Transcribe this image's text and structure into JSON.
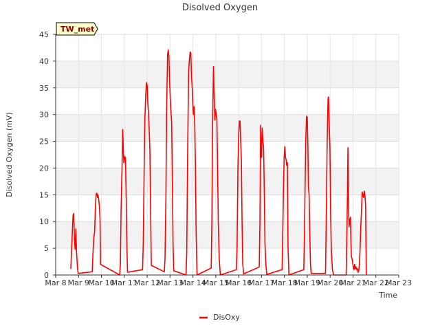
{
  "chart_data": {
    "type": "line",
    "title": "Disolved Oxygen",
    "xlabel": "Time",
    "ylabel": "Disolved Oxygen (mV)",
    "station_label": "TW_met",
    "xlim": [
      8,
      23
    ],
    "ylim": [
      0,
      45
    ],
    "x_ticks": [
      8,
      9,
      10,
      11,
      12,
      13,
      14,
      15,
      16,
      17,
      18,
      19,
      20,
      21,
      22,
      23
    ],
    "x_tick_labels": [
      "Mar 8",
      "Mar 9",
      "Mar 10",
      "Mar 11",
      "Mar 12",
      "Mar 13",
      "Mar 14",
      "Mar 15",
      "Mar 16",
      "Mar 17",
      "Mar 18",
      "Mar 19",
      "Mar 20",
      "Mar 21",
      "Mar 22",
      "Mar 23"
    ],
    "y_ticks": [
      0,
      5,
      10,
      15,
      20,
      25,
      30,
      35,
      40,
      45
    ],
    "y_tick_labels": [
      "0",
      "5",
      "10",
      "15",
      "20",
      "25",
      "30",
      "35",
      "40",
      "45"
    ],
    "grid": true,
    "banded_background": true,
    "legend_position": "bottom-center",
    "series": [
      {
        "name": "DisOxy",
        "color": "#ff0000",
        "points": [
          [
            8.66,
            1.1
          ],
          [
            8.72,
            7.5
          ],
          [
            8.76,
            11.2
          ],
          [
            8.79,
            11.5
          ],
          [
            8.82,
            6.5
          ],
          [
            8.85,
            4.8
          ],
          [
            8.88,
            8.6
          ],
          [
            8.91,
            4.5
          ],
          [
            8.95,
            1.5
          ],
          [
            8.98,
            0.3
          ],
          [
            9.6,
            0.6
          ],
          [
            9.63,
            4.0
          ],
          [
            9.67,
            7.2
          ],
          [
            9.7,
            8.0
          ],
          [
            9.74,
            13.0
          ],
          [
            9.77,
            15.2
          ],
          [
            9.8,
            15.3
          ],
          [
            9.83,
            14.5
          ],
          [
            9.85,
            15.0
          ],
          [
            9.88,
            14.2
          ],
          [
            9.91,
            13.0
          ],
          [
            9.94,
            10.5
          ],
          [
            9.96,
            2.0
          ],
          [
            10.8,
            0.0
          ],
          [
            10.83,
            2.0
          ],
          [
            10.86,
            12.0
          ],
          [
            10.9,
            20.0
          ],
          [
            10.93,
            27.2
          ],
          [
            10.96,
            23.0
          ],
          [
            10.98,
            21.0
          ],
          [
            11.0,
            22.2
          ],
          [
            11.02,
            21.5
          ],
          [
            11.05,
            22.0
          ],
          [
            11.08,
            15.0
          ],
          [
            11.11,
            6.0
          ],
          [
            11.14,
            0.5
          ],
          [
            11.8,
            1.0
          ],
          [
            11.83,
            6.0
          ],
          [
            11.87,
            20.0
          ],
          [
            11.9,
            29.0
          ],
          [
            11.94,
            34.0
          ],
          [
            11.97,
            36.0
          ],
          [
            12.0,
            35.5
          ],
          [
            12.03,
            32.0
          ],
          [
            12.06,
            30.0
          ],
          [
            12.09,
            27.0
          ],
          [
            12.12,
            23.0
          ],
          [
            12.15,
            12.0
          ],
          [
            12.18,
            1.8
          ],
          [
            12.75,
            0.6
          ],
          [
            12.78,
            3.0
          ],
          [
            12.82,
            14.0
          ],
          [
            12.85,
            30.0
          ],
          [
            12.89,
            41.0
          ],
          [
            12.92,
            42.1
          ],
          [
            12.95,
            41.0
          ],
          [
            12.98,
            36.0
          ],
          [
            13.01,
            33.0
          ],
          [
            13.04,
            30.5
          ],
          [
            13.07,
            28.5
          ],
          [
            13.1,
            18.0
          ],
          [
            13.13,
            6.0
          ],
          [
            13.16,
            0.8
          ],
          [
            13.7,
            0.0
          ],
          [
            13.73,
            4.0
          ],
          [
            13.77,
            22.0
          ],
          [
            13.81,
            38.0
          ],
          [
            13.84,
            40.0
          ],
          [
            13.88,
            41.7
          ],
          [
            13.91,
            41.5
          ],
          [
            13.94,
            37.0
          ],
          [
            13.97,
            35.0
          ],
          [
            14.0,
            31.5
          ],
          [
            14.02,
            30.0
          ],
          [
            14.05,
            31.5
          ],
          [
            14.08,
            28.0
          ],
          [
            14.11,
            20.0
          ],
          [
            14.14,
            8.0
          ],
          [
            14.18,
            0.0
          ],
          [
            14.8,
            1.3
          ],
          [
            14.83,
            10.0
          ],
          [
            14.86,
            28.0
          ],
          [
            14.9,
            39.0
          ],
          [
            14.93,
            34.0
          ],
          [
            14.96,
            29.0
          ],
          [
            14.99,
            31.0
          ],
          [
            15.02,
            30.0
          ],
          [
            15.05,
            29.0
          ],
          [
            15.08,
            20.0
          ],
          [
            15.11,
            10.0
          ],
          [
            15.15,
            3.0
          ],
          [
            15.2,
            0.0
          ],
          [
            15.9,
            1.0
          ],
          [
            15.93,
            5.0
          ],
          [
            15.97,
            20.0
          ],
          [
            16.0,
            26.0
          ],
          [
            16.03,
            28.8
          ],
          [
            16.06,
            28.8
          ],
          [
            16.09,
            25.0
          ],
          [
            16.12,
            21.5
          ],
          [
            16.15,
            10.0
          ],
          [
            16.18,
            2.0
          ],
          [
            16.22,
            0.2
          ],
          [
            16.9,
            1.5
          ],
          [
            16.93,
            10.0
          ],
          [
            16.96,
            28.0
          ],
          [
            16.98,
            24.0
          ],
          [
            17.0,
            22.0
          ],
          [
            17.03,
            27.5
          ],
          [
            17.06,
            25.0
          ],
          [
            17.09,
            24.0
          ],
          [
            17.12,
            16.0
          ],
          [
            17.15,
            6.0
          ],
          [
            17.19,
            2.0
          ],
          [
            17.23,
            0.1
          ],
          [
            17.9,
            1.0
          ],
          [
            17.93,
            8.0
          ],
          [
            17.96,
            16.0
          ],
          [
            17.99,
            22.0
          ],
          [
            18.02,
            24.0
          ],
          [
            18.05,
            22.0
          ],
          [
            18.08,
            21.5
          ],
          [
            18.1,
            20.5
          ],
          [
            18.13,
            21.0
          ],
          [
            18.16,
            5.0
          ],
          [
            18.2,
            0.0
          ],
          [
            18.85,
            1.0
          ],
          [
            18.88,
            8.0
          ],
          [
            18.91,
            18.0
          ],
          [
            18.94,
            26.0
          ],
          [
            18.97,
            29.7
          ],
          [
            19.0,
            29.5
          ],
          [
            19.03,
            24.0
          ],
          [
            19.05,
            16.5
          ],
          [
            19.08,
            15.0
          ],
          [
            19.11,
            8.0
          ],
          [
            19.14,
            2.0
          ],
          [
            19.17,
            0.3
          ],
          [
            19.8,
            0.3
          ],
          [
            19.83,
            10.0
          ],
          [
            19.87,
            25.0
          ],
          [
            19.91,
            33.0
          ],
          [
            19.93,
            33.3
          ],
          [
            19.96,
            28.0
          ],
          [
            19.99,
            24.0
          ],
          [
            20.02,
            12.0
          ],
          [
            20.05,
            5.0
          ],
          [
            20.1,
            1.0
          ],
          [
            20.15,
            0.0
          ],
          [
            20.7,
            0.0
          ],
          [
            20.73,
            7.0
          ],
          [
            20.76,
            16.0
          ],
          [
            20.78,
            23.8
          ],
          [
            20.81,
            12.0
          ],
          [
            20.83,
            9.0
          ],
          [
            20.85,
            10.5
          ],
          [
            20.87,
            9.5
          ],
          [
            20.89,
            10.8
          ],
          [
            20.91,
            6.0
          ],
          [
            20.93,
            3.5
          ],
          [
            20.96,
            3.0
          ],
          [
            20.98,
            2.5
          ],
          [
            21.01,
            1.5
          ],
          [
            21.04,
            1.0
          ],
          [
            21.07,
            2.0
          ],
          [
            21.1,
            1.2
          ],
          [
            21.13,
            1.5
          ],
          [
            21.16,
            1.0
          ],
          [
            21.19,
            1.2
          ],
          [
            21.22,
            0.5
          ],
          [
            21.25,
            0.8
          ],
          [
            21.28,
            2.0
          ],
          [
            21.31,
            5.0
          ],
          [
            21.34,
            9.0
          ],
          [
            21.37,
            12.0
          ],
          [
            21.4,
            15.5
          ],
          [
            21.43,
            15.0
          ],
          [
            21.46,
            14.5
          ],
          [
            21.49,
            15.7
          ],
          [
            21.52,
            15.0
          ],
          [
            21.55,
            13.0
          ],
          [
            21.58,
            0.0
          ]
        ]
      }
    ]
  }
}
